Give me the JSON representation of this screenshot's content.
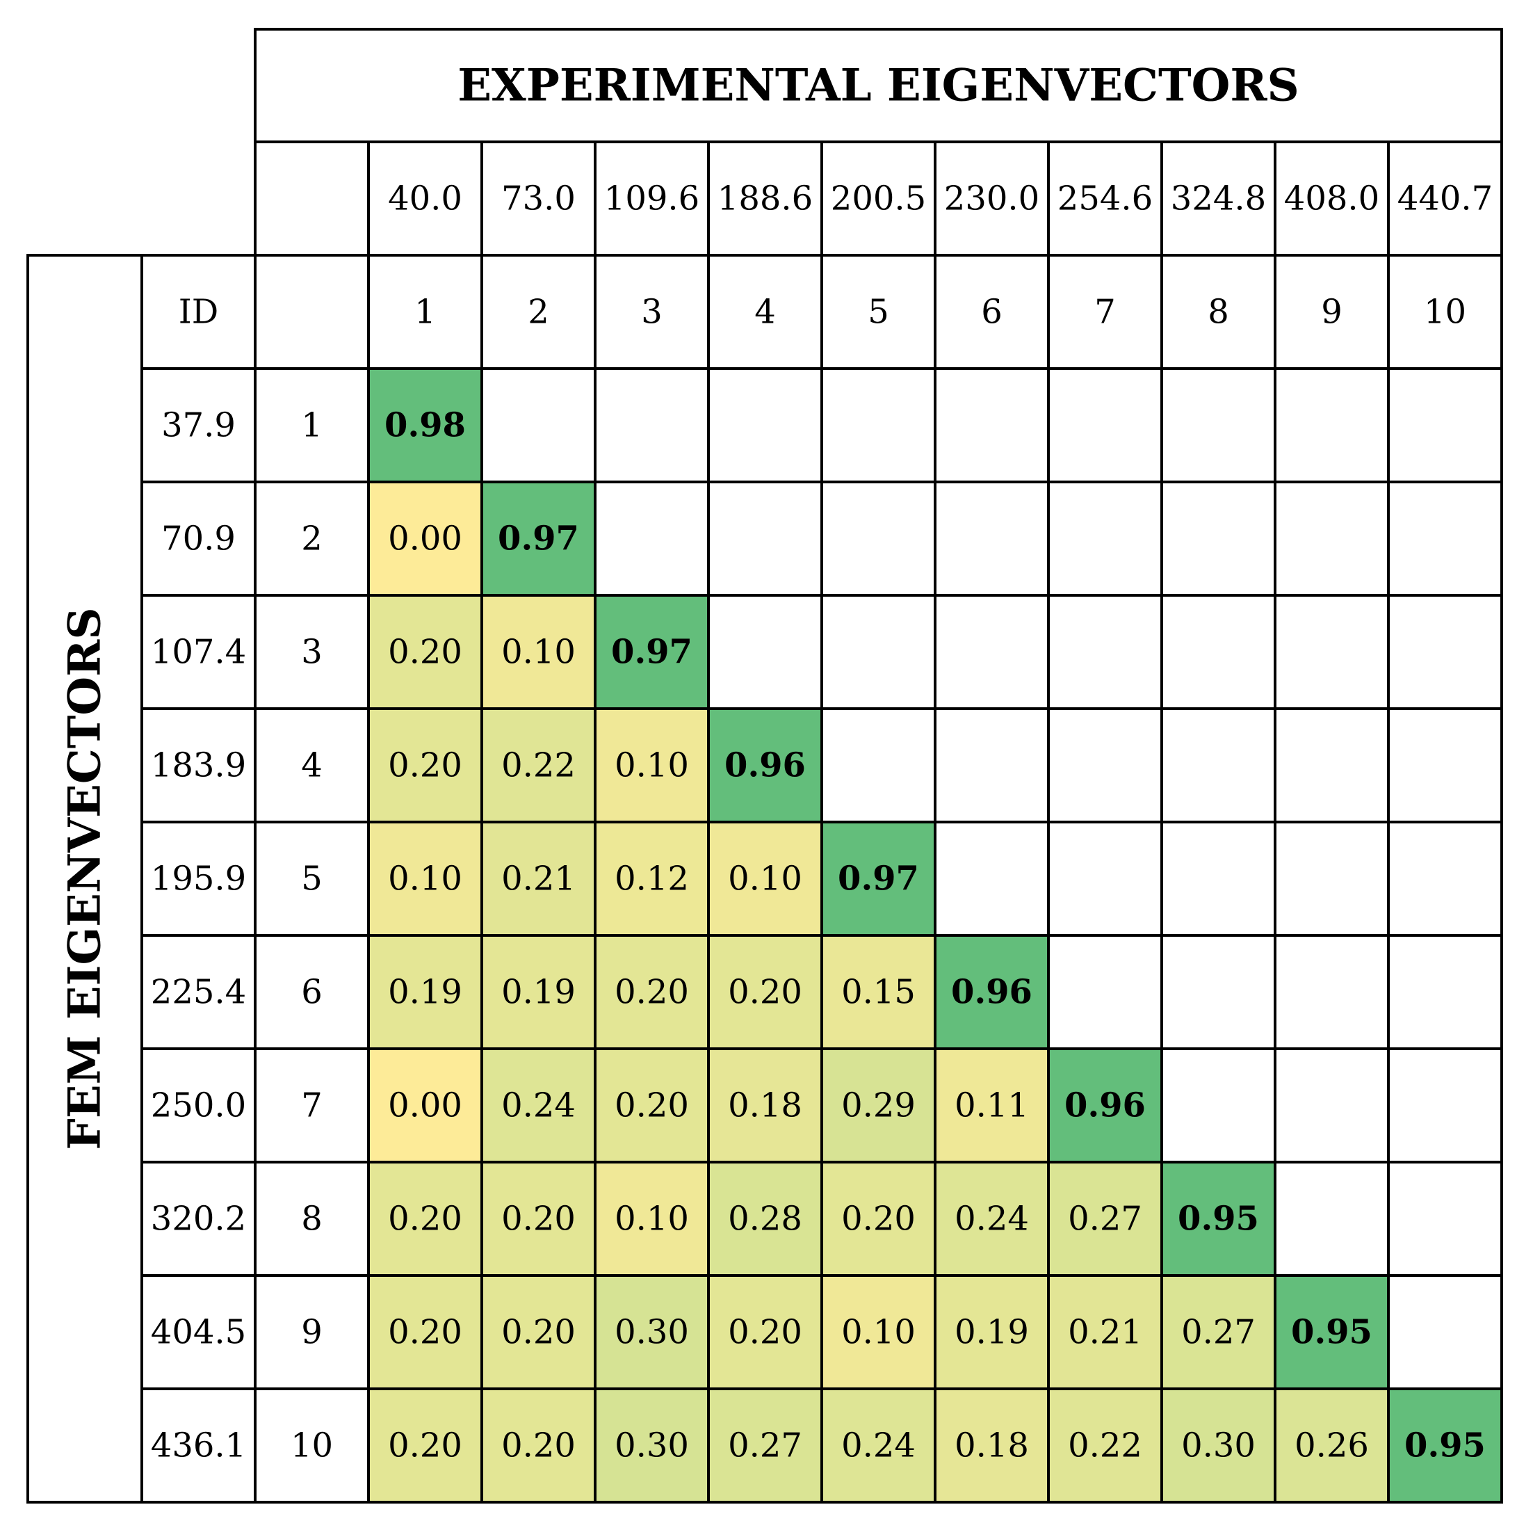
{
  "chart_data": {
    "type": "heatmap",
    "column_header": "EXPERIMENTAL EIGENVECTORS",
    "row_header": "FEM EIGENVECTORS",
    "id_label": "ID",
    "experimental_frequencies": [
      "40.0",
      "73.0",
      "109.6",
      "188.6",
      "200.5",
      "230.0",
      "254.6",
      "324.8",
      "408.0",
      "440.7"
    ],
    "experimental_ids": [
      "1",
      "2",
      "3",
      "4",
      "5",
      "6",
      "7",
      "8",
      "9",
      "10"
    ],
    "fem_frequencies": [
      "37.9",
      "70.9",
      "107.4",
      "183.9",
      "195.9",
      "225.4",
      "250.0",
      "320.2",
      "404.5",
      "436.1"
    ],
    "fem_ids": [
      "1",
      "2",
      "3",
      "4",
      "5",
      "6",
      "7",
      "8",
      "9",
      "10"
    ],
    "values": [
      [
        "0.98",
        null,
        null,
        null,
        null,
        null,
        null,
        null,
        null,
        null
      ],
      [
        "0.00",
        "0.97",
        null,
        null,
        null,
        null,
        null,
        null,
        null,
        null
      ],
      [
        "0.20",
        "0.10",
        "0.97",
        null,
        null,
        null,
        null,
        null,
        null,
        null
      ],
      [
        "0.20",
        "0.22",
        "0.10",
        "0.96",
        null,
        null,
        null,
        null,
        null,
        null
      ],
      [
        "0.10",
        "0.21",
        "0.12",
        "0.10",
        "0.97",
        null,
        null,
        null,
        null,
        null
      ],
      [
        "0.19",
        "0.19",
        "0.20",
        "0.20",
        "0.15",
        "0.96",
        null,
        null,
        null,
        null
      ],
      [
        "0.00",
        "0.24",
        "0.20",
        "0.18",
        "0.29",
        "0.11",
        "0.96",
        null,
        null,
        null
      ],
      [
        "0.20",
        "0.20",
        "0.10",
        "0.28",
        "0.20",
        "0.24",
        "0.27",
        "0.95",
        null,
        null
      ],
      [
        "0.20",
        "0.20",
        "0.30",
        "0.20",
        "0.10",
        "0.19",
        "0.21",
        "0.27",
        "0.95",
        null
      ],
      [
        "0.20",
        "0.20",
        "0.30",
        "0.27",
        "0.24",
        "0.18",
        "0.22",
        "0.30",
        "0.26",
        "0.95"
      ]
    ],
    "color_scale": {
      "low": "#fdeb98",
      "mid": "#d6e394",
      "high": "#63be7b",
      "empty": "#ffffff",
      "border": "#000000"
    }
  }
}
